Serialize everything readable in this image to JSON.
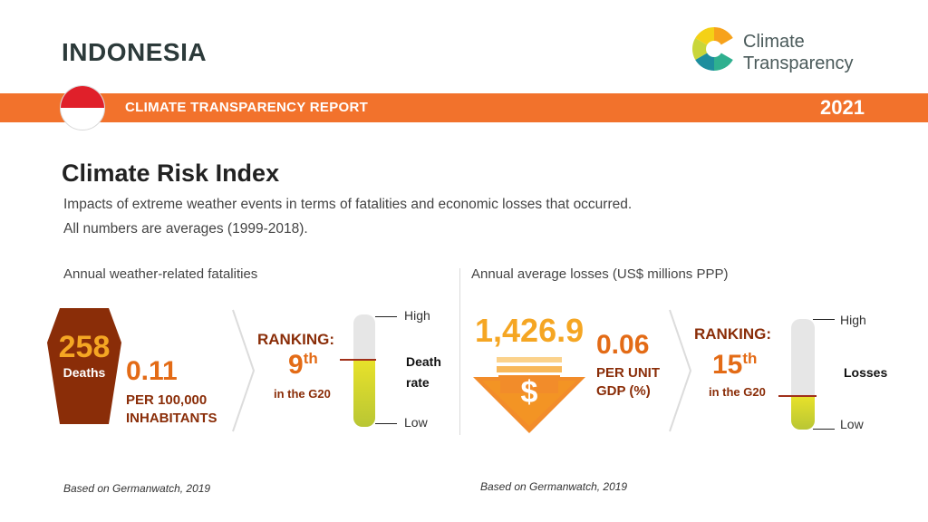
{
  "header": {
    "country": "INDONESIA",
    "logo_line1": "Climate",
    "logo_line2": "Transparency",
    "report_label": "CLIMATE TRANSPARENCY REPORT",
    "year": "2021"
  },
  "section": {
    "title": "Climate Risk Index",
    "desc_line1": "Impacts of extreme weather events in terms of fatalities and economic losses that occurred.",
    "desc_line2": "All numbers are averages (1999-2018)."
  },
  "fatalities": {
    "heading": "Annual weather-related fatalities",
    "deaths_value": "258",
    "deaths_label": "Deaths",
    "per_value": "0.11",
    "per_line1": "PER 100,000",
    "per_line2": "INHABITANTS",
    "ranking_label": "RANKING:",
    "rank_number": "9",
    "rank_suffix": "th",
    "rank_scope": "in the G20",
    "scale_high": "High",
    "scale_low": "Low",
    "indicator_line1": "Death",
    "indicator_line2": "rate",
    "rank_level": 0.6,
    "source": "Based on Germanwatch, 2019"
  },
  "losses": {
    "heading": "Annual average losses (US$ millions PPP)",
    "loss_value": "1,426.9",
    "currency_symbol": "$",
    "per_value": "0.06",
    "per_line1": "PER UNIT",
    "per_line2": "GDP (%)",
    "ranking_label": "RANKING:",
    "rank_number": "15",
    "rank_suffix": "th",
    "rank_scope": "in the G20",
    "scale_high": "High",
    "scale_low": "Low",
    "indicator": "Losses",
    "rank_level": 0.3,
    "source": "Based on Germanwatch, 2019"
  },
  "colors": {
    "banner": "#f2722c",
    "accent_orange": "#e36b16",
    "accent_brown": "#8a2d08",
    "fill_yellow": "#e8e22a",
    "fill_green": "#b9c634"
  }
}
